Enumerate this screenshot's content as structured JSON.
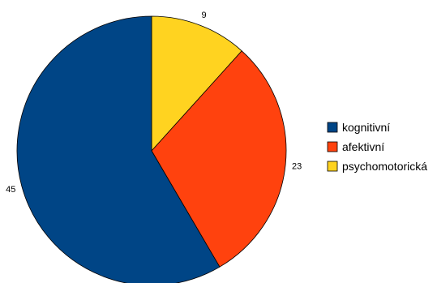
{
  "chart_data": {
    "type": "pie",
    "title": "",
    "legend_position": "right",
    "start_angle": "top",
    "direction": "clockwise",
    "slices": [
      {
        "label": "psychomotorická",
        "value": 9,
        "display": "9",
        "color": "#FFD320"
      },
      {
        "label": "afektivní",
        "value": 23,
        "display": "23",
        "color": "#FF420E"
      },
      {
        "label": "kognitivní",
        "value": 45,
        "display": "45",
        "color": "#004586"
      }
    ],
    "legend": [
      {
        "label": "kognitivní",
        "color": "#004586"
      },
      {
        "label": "afektivní",
        "color": "#FF420E"
      },
      {
        "label": "psychomotorická",
        "color": "#FFD320"
      }
    ]
  }
}
